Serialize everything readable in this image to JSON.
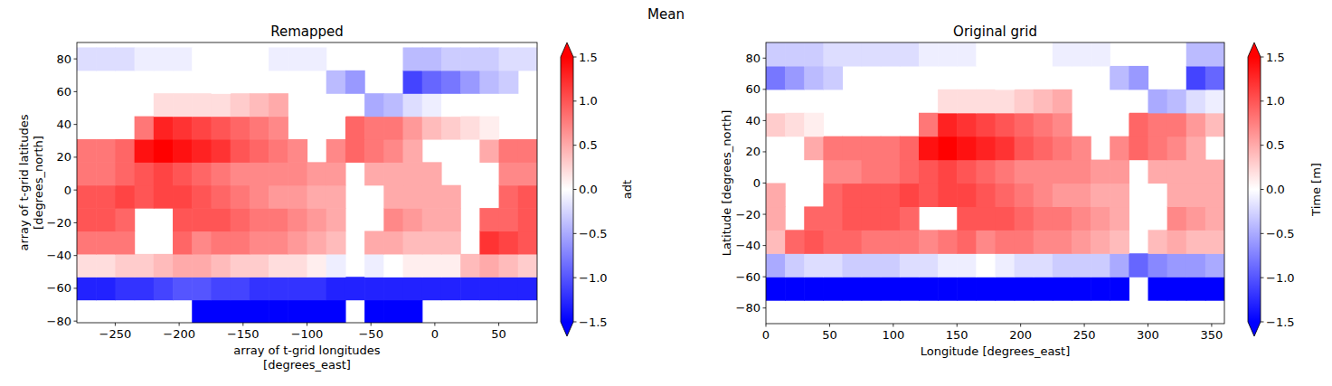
{
  "title": "Mean",
  "chart_data": [
    {
      "type": "heatmap",
      "title": "Remapped",
      "x_label": "array of t-grid longitudes\n[degrees_east]",
      "y_label": "array of t-grid latitudes\n[degrees_north]",
      "x": [
        -272.5,
        -257.5,
        -242.5,
        -227.5,
        -212.5,
        -197.5,
        -182.5,
        -167.5,
        -152.5,
        -137.5,
        -122.5,
        -107.5,
        -92.5,
        -77.5,
        -62.5,
        -47.5,
        -32.5,
        -17.5,
        -2.5,
        12.5,
        27.5,
        42.5,
        57.5,
        72.5
      ],
      "y": [
        -74,
        -60,
        -46,
        -32,
        -18,
        -4,
        10,
        24,
        38,
        52,
        66,
        80
      ],
      "cells": [
        [
          null,
          null,
          null,
          null,
          null,
          null,
          -1.7,
          -1.8,
          -1.8,
          -1.7,
          -1.7,
          -1.7,
          -1.7,
          -1.6,
          null,
          -1.6,
          -1.7,
          -1.7,
          null,
          null,
          null,
          null,
          null,
          null
        ],
        [
          -1.3,
          -1.3,
          -1.2,
          -1.2,
          -1.1,
          -1.0,
          -1.0,
          -1.1,
          -1.1,
          -1.2,
          -1.2,
          -1.2,
          -1.2,
          -1.3,
          -1.3,
          -1.3,
          -1.3,
          -1.3,
          -1.3,
          -1.3,
          -1.3,
          -1.3,
          -1.3,
          -1.3
        ],
        [
          0.2,
          0.2,
          0.3,
          0.3,
          0.4,
          0.5,
          0.5,
          0.4,
          0.3,
          0.3,
          0.2,
          0.2,
          0.1,
          -0.1,
          null,
          -0.1,
          0.0,
          0.1,
          0.1,
          0.1,
          0.4,
          0.5,
          0.4,
          0.3
        ],
        [
          0.8,
          0.8,
          0.8,
          null,
          null,
          0.9,
          0.7,
          0.8,
          0.8,
          0.7,
          0.7,
          0.6,
          0.5,
          0.4,
          null,
          0.5,
          0.5,
          0.4,
          0.4,
          0.4,
          null,
          1.2,
          1.1,
          1.0
        ],
        [
          1.0,
          1.0,
          0.9,
          null,
          null,
          1.0,
          1.0,
          1.0,
          0.9,
          0.8,
          0.8,
          0.7,
          0.6,
          0.5,
          null,
          null,
          0.7,
          0.6,
          0.5,
          0.5,
          null,
          0.9,
          0.9,
          1.0
        ],
        [
          1.0,
          1.0,
          1.1,
          1.0,
          1.1,
          1.1,
          1.0,
          0.9,
          0.8,
          0.7,
          0.6,
          0.6,
          0.5,
          0.5,
          null,
          null,
          0.5,
          0.5,
          0.5,
          0.5,
          null,
          null,
          0.9,
          1.0
        ],
        [
          0.8,
          0.8,
          0.9,
          1.0,
          1.1,
          1.0,
          0.9,
          0.8,
          0.7,
          0.7,
          0.7,
          0.7,
          0.6,
          0.6,
          null,
          0.5,
          0.5,
          0.5,
          0.5,
          null,
          null,
          null,
          0.7,
          0.7
        ],
        [
          0.8,
          0.8,
          0.9,
          1.4,
          1.5,
          1.4,
          1.3,
          1.2,
          1.0,
          0.9,
          0.8,
          0.7,
          null,
          0.7,
          0.9,
          0.8,
          0.7,
          0.5,
          null,
          null,
          null,
          0.5,
          0.8,
          0.8
        ],
        [
          null,
          null,
          null,
          0.8,
          1.3,
          1.2,
          1.1,
          1.0,
          0.9,
          0.8,
          0.7,
          null,
          null,
          null,
          0.9,
          0.8,
          0.8,
          0.6,
          0.4,
          0.3,
          0.2,
          0.1,
          null,
          null
        ],
        [
          null,
          null,
          null,
          null,
          0.2,
          0.2,
          0.2,
          0.2,
          0.3,
          0.4,
          0.5,
          null,
          null,
          0.0,
          null,
          -0.5,
          -0.4,
          -0.2,
          -0.1,
          0.0,
          null,
          null,
          null,
          null
        ],
        [
          null,
          null,
          null,
          null,
          null,
          null,
          null,
          0.0,
          null,
          null,
          null,
          null,
          null,
          -0.4,
          -0.6,
          null,
          null,
          -1.1,
          -0.9,
          -0.8,
          -0.6,
          -0.4,
          -0.3,
          null
        ],
        [
          -0.2,
          -0.2,
          -0.2,
          -0.1,
          -0.1,
          -0.1,
          0,
          0,
          0,
          0,
          -0.1,
          -0.1,
          -0.1,
          null,
          null,
          null,
          null,
          -0.4,
          -0.4,
          -0.3,
          -0.3,
          -0.3,
          -0.2,
          -0.2
        ]
      ],
      "xlim": [
        -280,
        80
      ],
      "ylim": [
        -81,
        90
      ],
      "xticks": [
        {
          "value": -250,
          "label": "−250"
        },
        {
          "value": -200,
          "label": "−200"
        },
        {
          "value": -150,
          "label": "−150"
        },
        {
          "value": -100,
          "label": "−100"
        },
        {
          "value": -50,
          "label": "−50"
        },
        0,
        50
      ],
      "yticks": [
        {
          "value": -80,
          "label": "−80"
        },
        {
          "value": -60,
          "label": "−60"
        },
        {
          "value": -40,
          "label": "−40"
        },
        {
          "value": -20,
          "label": "−20"
        },
        0,
        20,
        40,
        60,
        80
      ],
      "colorbar": {
        "label": "adt",
        "range": [
          -1.5,
          1.5
        ],
        "ticks": [
          {
            "value": -1.5,
            "label": "−1.5"
          },
          {
            "value": -1.0,
            "label": "−1.0"
          },
          {
            "value": -0.5,
            "label": "−0.5"
          },
          {
            "value": 0,
            "label": "0.0"
          },
          0.5,
          {
            "value": 1.0,
            "label": "1.0"
          },
          1.5
        ]
      }
    },
    {
      "type": "heatmap",
      "title": "Original grid",
      "x_label": "Longitude [degrees_east]",
      "y_label": "Latitude [degrees_north]",
      "x": [
        7.5,
        22.5,
        37.5,
        52.5,
        67.5,
        82.5,
        97.5,
        112.5,
        127.5,
        142.5,
        157.5,
        172.5,
        187.5,
        202.5,
        217.5,
        232.5,
        247.5,
        262.5,
        277.5,
        292.5,
        307.5,
        322.5,
        337.5,
        352.5
      ],
      "y": [
        -82.5,
        -67.5,
        -52.5,
        -37.5,
        -22.5,
        -7.5,
        7.5,
        22.5,
        37.5,
        52.5,
        67.5,
        82.5
      ],
      "cells": [
        [
          null,
          null,
          null,
          null,
          null,
          null,
          null,
          null,
          null,
          null,
          null,
          null,
          null,
          null,
          null,
          null,
          null,
          null,
          null,
          null,
          null,
          null,
          null,
          null
        ],
        [
          -1.6,
          -1.6,
          -1.6,
          -1.6,
          -1.6,
          -1.6,
          -1.6,
          -1.6,
          -1.6,
          -1.6,
          -1.6,
          -1.7,
          -1.7,
          -1.7,
          -1.7,
          -1.6,
          -1.6,
          -1.6,
          -1.5,
          null,
          -1.5,
          -1.6,
          -1.6,
          -1.6
        ],
        [
          -0.5,
          -0.3,
          -0.2,
          -0.2,
          -0.3,
          -0.3,
          -0.3,
          -0.2,
          -0.2,
          -0.1,
          -0.1,
          0.0,
          -0.1,
          -0.2,
          -0.2,
          -0.3,
          -0.3,
          -0.3,
          -0.5,
          -0.9,
          -0.7,
          -0.6,
          -0.6,
          -0.5
        ],
        [
          0.4,
          0.9,
          1.0,
          0.9,
          0.9,
          0.8,
          0.8,
          0.8,
          0.7,
          0.8,
          0.9,
          0.7,
          0.8,
          0.8,
          0.7,
          0.7,
          0.6,
          0.5,
          0.4,
          null,
          0.4,
          0.5,
          0.4,
          0.4
        ],
        [
          0.5,
          null,
          0.9,
          0.9,
          1.0,
          1.0,
          1.0,
          0.9,
          null,
          null,
          1.0,
          1.0,
          1.0,
          0.9,
          0.8,
          0.8,
          0.7,
          0.6,
          0.5,
          null,
          null,
          0.7,
          0.6,
          0.5
        ],
        [
          0.5,
          null,
          null,
          0.9,
          1.0,
          1.0,
          1.0,
          1.1,
          1.0,
          1.1,
          1.1,
          1.0,
          0.9,
          0.8,
          0.7,
          0.6,
          0.6,
          0.5,
          0.5,
          null,
          null,
          0.5,
          0.5,
          0.5
        ],
        [
          null,
          null,
          null,
          0.7,
          0.7,
          0.8,
          0.8,
          0.9,
          1.0,
          1.1,
          1.0,
          0.9,
          0.8,
          0.7,
          0.7,
          0.7,
          0.7,
          0.6,
          0.6,
          null,
          0.5,
          0.5,
          0.5,
          0.5
        ],
        [
          null,
          null,
          0.5,
          0.8,
          0.8,
          0.8,
          0.8,
          0.9,
          1.4,
          1.5,
          1.4,
          1.3,
          1.2,
          1.0,
          0.9,
          0.8,
          0.7,
          null,
          0.7,
          0.9,
          0.8,
          0.7,
          0.5,
          null
        ],
        [
          0.3,
          0.2,
          0.1,
          null,
          null,
          null,
          null,
          null,
          0.8,
          1.3,
          1.2,
          1.1,
          1.0,
          0.9,
          0.8,
          0.7,
          null,
          null,
          null,
          0.9,
          0.8,
          0.8,
          0.6,
          0.4
        ],
        [
          0.0,
          null,
          null,
          null,
          null,
          null,
          null,
          null,
          null,
          0.2,
          0.2,
          0.2,
          0.2,
          0.3,
          0.4,
          0.5,
          null,
          null,
          0.0,
          null,
          -0.5,
          -0.4,
          -0.2,
          -0.1
        ],
        [
          -0.8,
          -0.6,
          -0.4,
          -0.3,
          null,
          null,
          null,
          null,
          null,
          null,
          null,
          null,
          0.0,
          null,
          null,
          null,
          null,
          null,
          -0.4,
          -0.6,
          null,
          null,
          -1.1,
          -0.9
        ],
        [
          -0.3,
          -0.3,
          -0.3,
          -0.2,
          -0.2,
          -0.2,
          -0.2,
          -0.2,
          -0.1,
          -0.1,
          -0.1,
          0,
          0,
          0,
          0,
          -0.1,
          -0.1,
          -0.1,
          null,
          null,
          null,
          null,
          -0.4,
          -0.4
        ]
      ],
      "xlim": [
        0,
        360
      ],
      "ylim": [
        -90,
        90
      ],
      "xticks": [
        0,
        50,
        100,
        150,
        200,
        250,
        300,
        350
      ],
      "yticks": [
        {
          "value": -80,
          "label": "−80"
        },
        {
          "value": -60,
          "label": "−60"
        },
        {
          "value": -40,
          "label": "−40"
        },
        {
          "value": -20,
          "label": "−20"
        },
        0,
        20,
        40,
        60,
        80
      ],
      "colorbar": {
        "label": "Time [m]",
        "range": [
          -1.5,
          1.5
        ],
        "ticks": [
          {
            "value": -1.5,
            "label": "−1.5"
          },
          {
            "value": -1.0,
            "label": "−1.0"
          },
          {
            "value": -0.5,
            "label": "−0.5"
          },
          {
            "value": 0,
            "label": "0.0"
          },
          0.5,
          {
            "value": 1.0,
            "label": "1.0"
          },
          1.5
        ]
      }
    }
  ]
}
